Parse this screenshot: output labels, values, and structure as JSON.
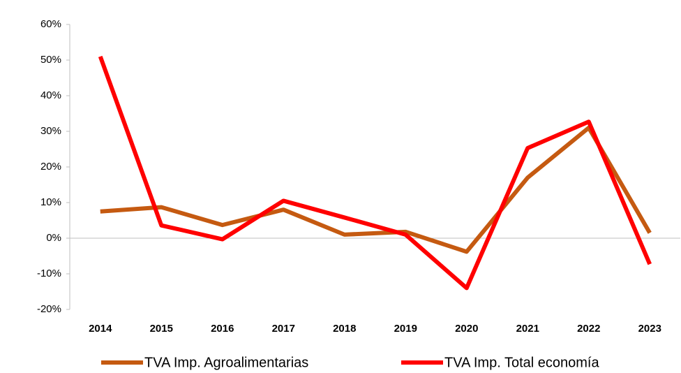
{
  "chart_data": {
    "type": "line",
    "categories": [
      "2014",
      "2015",
      "2016",
      "2017",
      "2018",
      "2019",
      "2020",
      "2021",
      "2022",
      "2023"
    ],
    "series": [
      {
        "name": "TVA Imp. Agroalimentarias",
        "color": "#c55a11",
        "values": [
          7.5,
          8.7,
          3.7,
          8.0,
          1.0,
          1.8,
          -3.8,
          17.0,
          31.0,
          1.5
        ]
      },
      {
        "name": "TVA Imp. Total economía",
        "color": "#ff0000",
        "values": [
          51.0,
          3.6,
          -0.3,
          10.5,
          5.8,
          1.0,
          -14.0,
          25.3,
          32.7,
          -7.3
        ]
      }
    ],
    "ylim": [
      -20,
      60
    ],
    "yticks": [
      {
        "value": -20,
        "label": "-20%"
      },
      {
        "value": -10,
        "label": "-10%"
      },
      {
        "value": 0,
        "label": "0%"
      },
      {
        "value": 10,
        "label": "10%"
      },
      {
        "value": 20,
        "label": "20%"
      },
      {
        "value": 30,
        "label": "30%"
      },
      {
        "value": 40,
        "label": "40%"
      },
      {
        "value": 50,
        "label": "50%"
      },
      {
        "value": 60,
        "label": "60%"
      }
    ],
    "legend": "bottom"
  }
}
